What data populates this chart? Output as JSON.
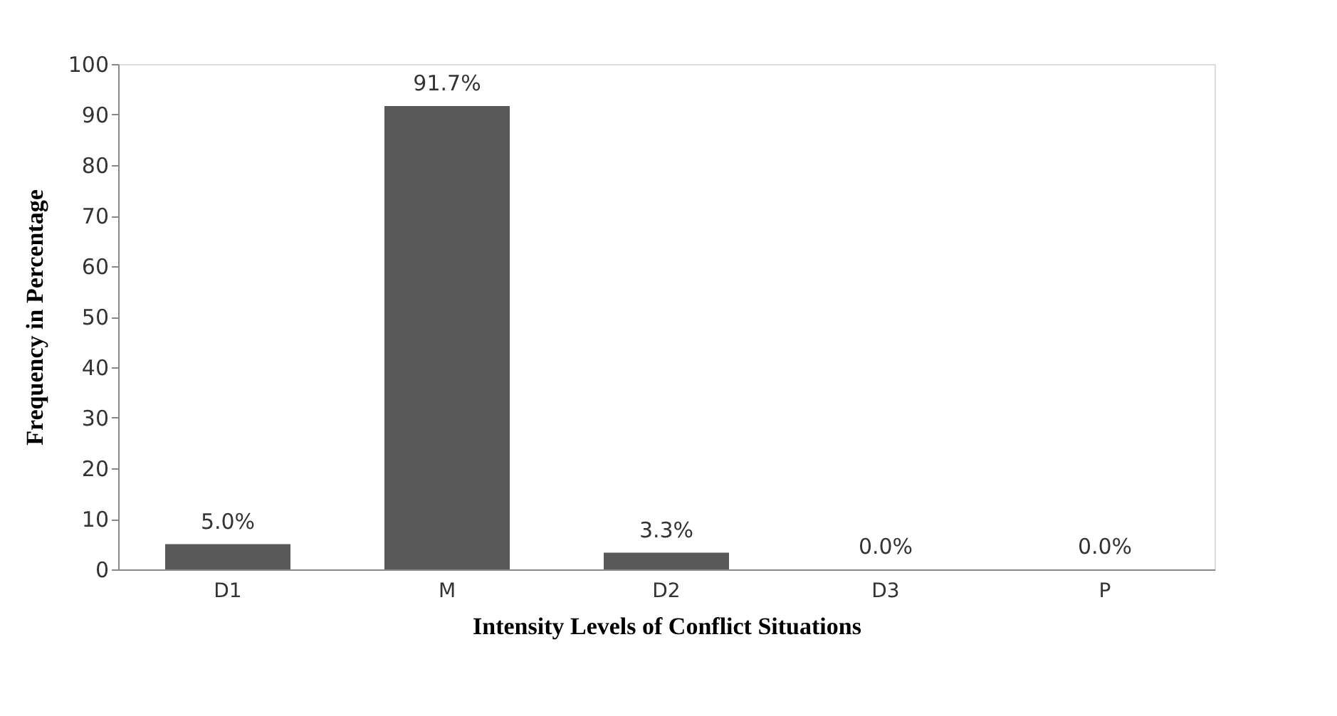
{
  "chart_data": {
    "type": "bar",
    "xlabel": "Intensity Levels of Conflict Situations",
    "ylabel": "Frequency in Percentage",
    "categories": [
      "D1",
      "M",
      "D2",
      "D3",
      "P"
    ],
    "values": [
      5.0,
      91.7,
      3.3,
      0.0,
      0.0
    ],
    "value_labels": [
      "5.0%",
      "91.7%",
      "3.3%",
      "0.0%",
      "0.0%"
    ],
    "color": "#595959",
    "ylim": [
      0,
      100
    ],
    "yticks": [
      0,
      10,
      20,
      30,
      40,
      50,
      60,
      70,
      80,
      90,
      100
    ],
    "grid": false
  }
}
